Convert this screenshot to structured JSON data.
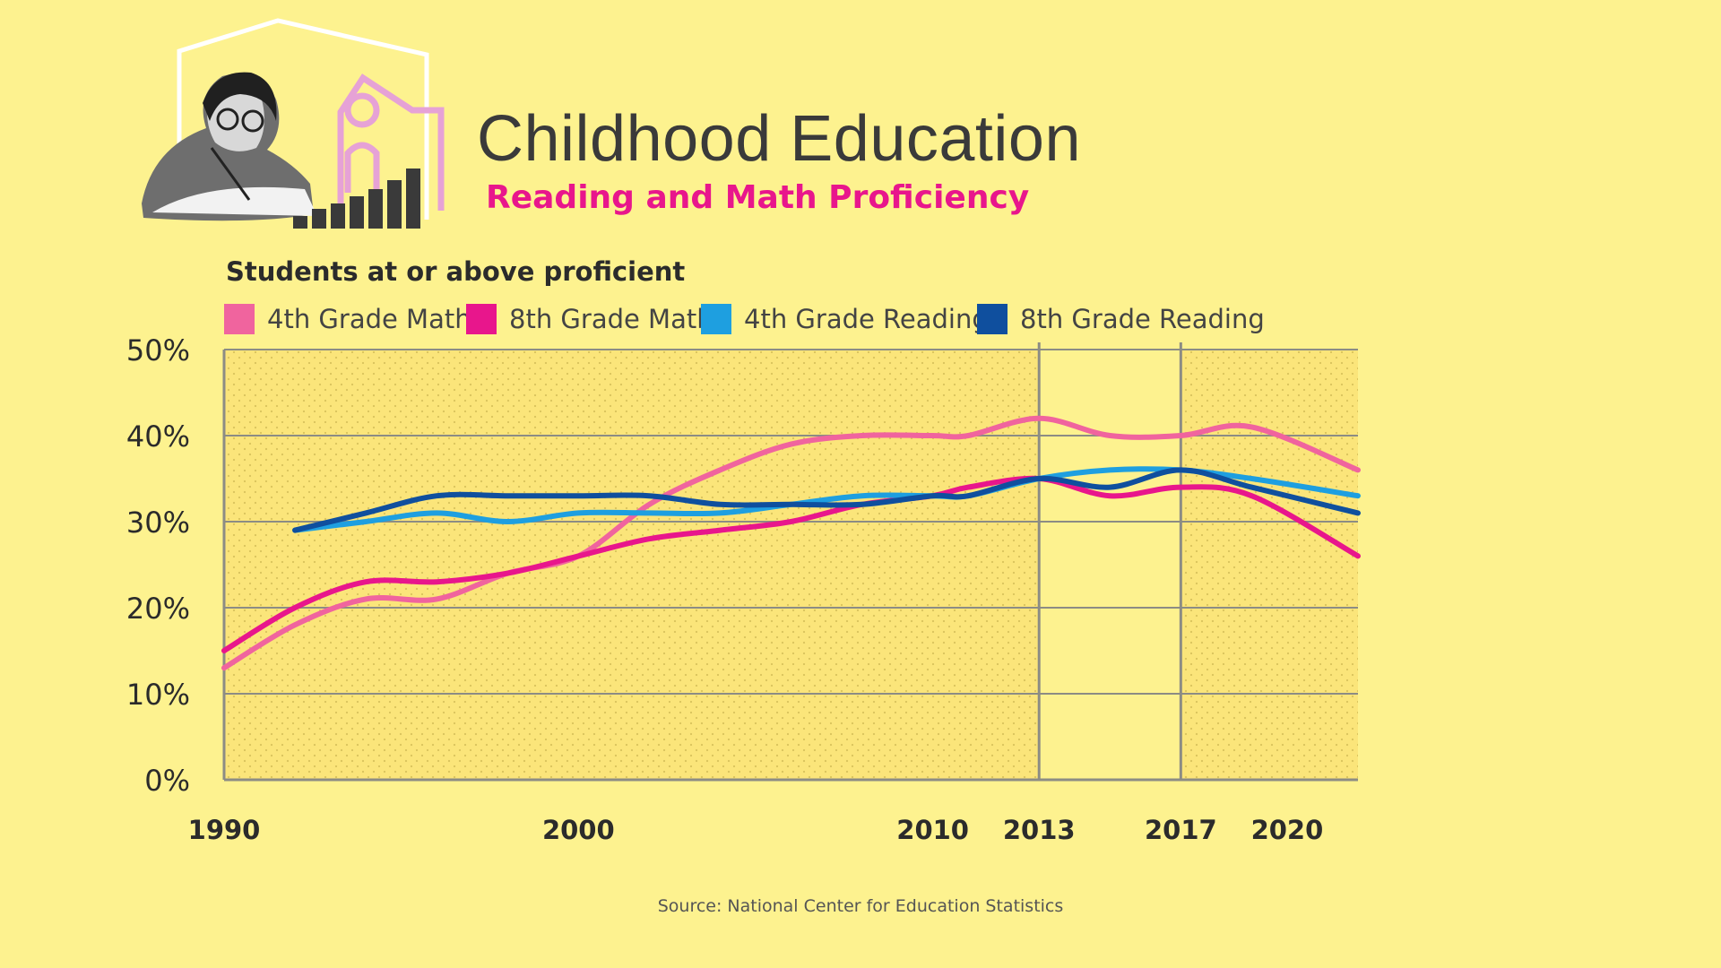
{
  "header": {
    "title": "Childhood Education",
    "subtitle": "Reading and Math Proficiency"
  },
  "source": "Source: National Center for Education Statistics",
  "colors": {
    "background": "#fdf28f",
    "plot_fill": "#fbe57a",
    "gridline": "#8c8c84",
    "title": "#3a3a3a",
    "subtitle": "#e8168c",
    "illustration_accent": "#e6a2d6"
  },
  "illustration": {
    "icon": "child-writing-school-house-bar-graph-icon"
  },
  "chart_data": {
    "type": "line",
    "title": "Students at or above proficient",
    "xlabel": "",
    "ylabel": "",
    "ylim": [
      0,
      50
    ],
    "xlim": [
      1990,
      2022
    ],
    "grid": true,
    "legend_position": "top",
    "y_ticks": [
      0,
      10,
      20,
      30,
      40,
      50
    ],
    "y_tick_labels": [
      "0%",
      "10%",
      "20%",
      "30%",
      "40%",
      "50%"
    ],
    "x_ticks": [
      1990,
      2000,
      2010,
      2013,
      2017,
      2020
    ],
    "x_tick_labels": [
      "1990",
      "2000",
      "2010",
      "2013",
      "2017",
      "2020"
    ],
    "unshaded_interval": [
      2013,
      2017
    ],
    "series": [
      {
        "name": "4th Grade Math",
        "color": "#f0649e",
        "x": [
          1990,
          1992,
          1994,
          1996,
          1998,
          2000,
          2002,
          2004,
          2006,
          2008,
          2010,
          2011,
          2013,
          2015,
          2017,
          2019,
          2022
        ],
        "values": [
          13,
          18,
          21,
          21,
          24,
          26,
          32,
          36,
          39,
          40,
          40,
          40,
          42,
          40,
          40,
          41,
          36
        ]
      },
      {
        "name": "8th Grade Math",
        "color": "#e8168c",
        "x": [
          1990,
          1992,
          1994,
          1996,
          1998,
          2000,
          2002,
          2004,
          2006,
          2008,
          2010,
          2011,
          2013,
          2015,
          2017,
          2019,
          2022
        ],
        "values": [
          15,
          20,
          23,
          23,
          24,
          26,
          28,
          29,
          30,
          32,
          33,
          34,
          35,
          33,
          34,
          33,
          26
        ]
      },
      {
        "name": "4th Grade Reading",
        "color": "#1e9fe0",
        "x": [
          1992,
          1994,
          1996,
          1998,
          2000,
          2002,
          2004,
          2006,
          2008,
          2010,
          2011,
          2013,
          2015,
          2017,
          2019,
          2022
        ],
        "values": [
          29,
          30,
          31,
          30,
          31,
          31,
          31,
          32,
          33,
          33,
          33,
          35,
          36,
          36,
          35,
          33
        ]
      },
      {
        "name": "8th Grade Reading",
        "color": "#0f4f9e",
        "x": [
          1992,
          1994,
          1996,
          1998,
          2000,
          2002,
          2004,
          2006,
          2008,
          2010,
          2011,
          2013,
          2015,
          2017,
          2019,
          2022
        ],
        "values": [
          29,
          31,
          33,
          33,
          33,
          33,
          32,
          32,
          32,
          33,
          33,
          35,
          34,
          36,
          34,
          31
        ]
      }
    ]
  }
}
